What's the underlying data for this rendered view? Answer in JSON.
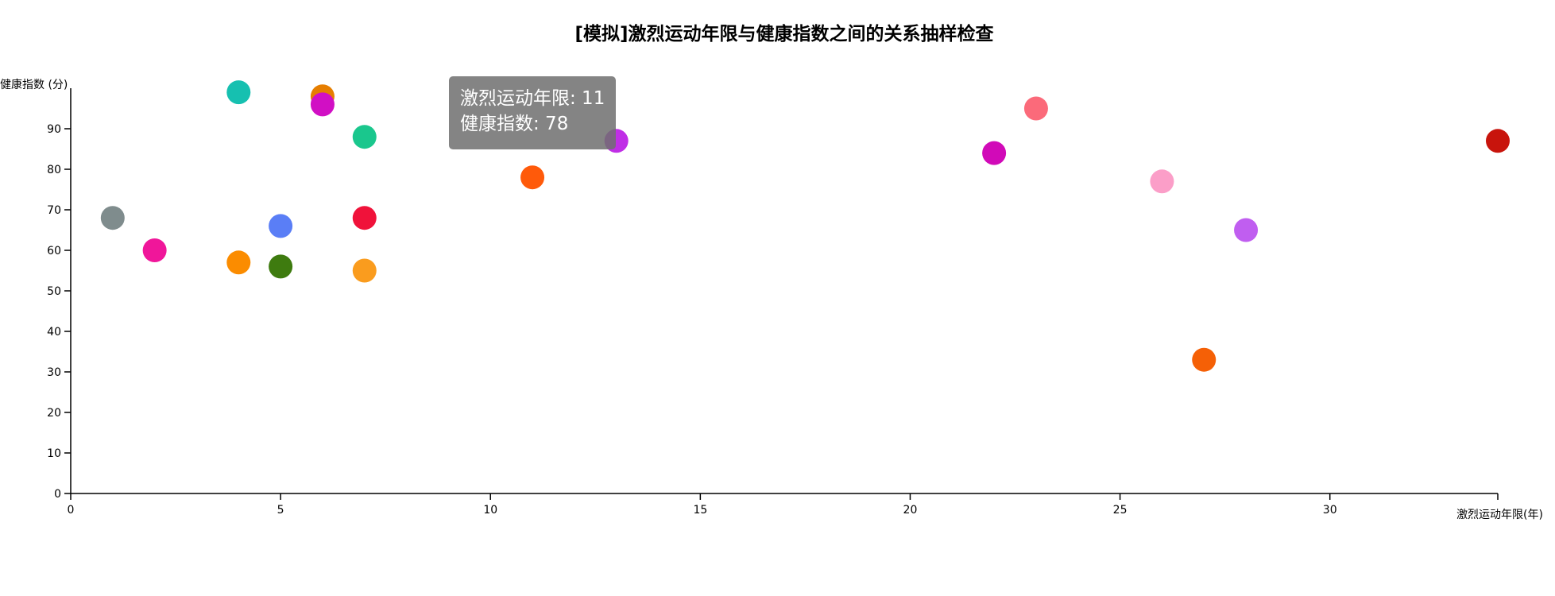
{
  "chart_data": {
    "type": "scatter",
    "title": "[模拟]激烈运动年限与健康指数之间的关系抽样检查",
    "xlabel": "激烈运动年限(年)",
    "ylabel": "健康指数 (分)",
    "xlim": [
      0,
      34
    ],
    "ylim": [
      0,
      100
    ],
    "x_ticks": [
      0,
      5,
      10,
      15,
      20,
      25,
      30
    ],
    "y_ticks": [
      0,
      10,
      20,
      30,
      40,
      50,
      60,
      70,
      80,
      90
    ],
    "grid": false,
    "legend": "none",
    "points": [
      {
        "x": 1,
        "y": 68,
        "color": "#7f8c8d"
      },
      {
        "x": 2,
        "y": 60,
        "color": "#f0169a"
      },
      {
        "x": 4,
        "y": 99,
        "color": "#16c0b0"
      },
      {
        "x": 4,
        "y": 57,
        "color": "#fb8c00"
      },
      {
        "x": 5,
        "y": 66,
        "color": "#5a7ef6"
      },
      {
        "x": 5,
        "y": 56,
        "color": "#3e7b0f"
      },
      {
        "x": 6,
        "y": 98,
        "color": "#e67e00"
      },
      {
        "x": 6,
        "y": 96,
        "color": "#d10fc4"
      },
      {
        "x": 7,
        "y": 88,
        "color": "#1ac78d"
      },
      {
        "x": 7,
        "y": 68,
        "color": "#f0123a"
      },
      {
        "x": 7,
        "y": 55,
        "color": "#fa9c1e"
      },
      {
        "x": 11,
        "y": 78,
        "color": "#ff5a0a"
      },
      {
        "x": 13,
        "y": 87,
        "color": "#c02ee6"
      },
      {
        "x": 22,
        "y": 84,
        "color": "#d10ab8"
      },
      {
        "x": 23,
        "y": 95,
        "color": "#fb6a7a"
      },
      {
        "x": 26,
        "y": 77,
        "color": "#fb9ec8"
      },
      {
        "x": 27,
        "y": 33,
        "color": "#f56006"
      },
      {
        "x": 28,
        "y": 65,
        "color": "#c05ef0"
      },
      {
        "x": 34,
        "y": 87,
        "color": "#c8140c"
      }
    ]
  },
  "tooltip": {
    "line1": "激烈运动年限: 11",
    "line2": "健康指数: 78"
  }
}
